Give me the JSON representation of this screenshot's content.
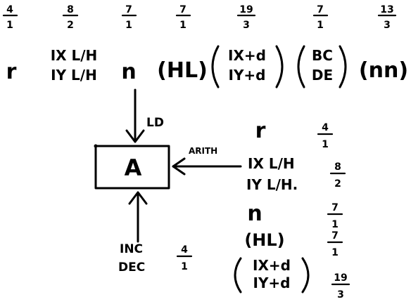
{
  "top_row": {
    "fractions": [
      {
        "num": "4",
        "den": "1"
      },
      {
        "num": "8",
        "den": "2"
      },
      {
        "num": "7",
        "den": "1"
      },
      {
        "num": "7",
        "den": "1"
      },
      {
        "num": "19",
        "den": "3"
      },
      {
        "num": "7",
        "den": "1"
      },
      {
        "num": "13",
        "den": "3"
      }
    ],
    "sources": {
      "r": "r",
      "index_reg_line1": "IX L/H",
      "index_reg_line2": "IY L/H",
      "n": "n",
      "hl": "(HL)",
      "indexed_line1": "IX+d",
      "indexed_line2": "IY+d",
      "pair_line1": "BC",
      "pair_line2": "DE",
      "nn": "(nn)"
    }
  },
  "ld_label": "LD",
  "register": {
    "label": "A"
  },
  "arith_label": "ARITH",
  "arith_list": [
    {
      "line1": "r",
      "line2": "",
      "num": "4",
      "den": "1"
    },
    {
      "line1": "IX L/H",
      "line2": "IY L/H.",
      "num": "8",
      "den": "2"
    },
    {
      "line1": "n",
      "line2": "",
      "num": "7",
      "den": "1"
    },
    {
      "line1": "(HL)",
      "line2": "",
      "num": "7",
      "den": "1"
    },
    {
      "line1": "IX+d",
      "line2": "IY+d",
      "num": "19",
      "den": "3"
    }
  ],
  "incdec": {
    "line1": "INC",
    "line2": "DEC",
    "num": "4",
    "den": "1"
  }
}
